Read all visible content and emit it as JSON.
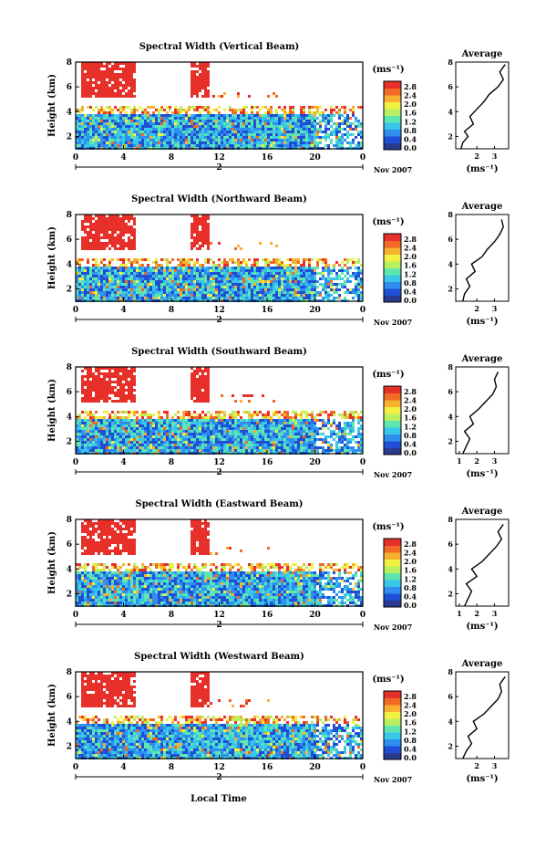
{
  "figure": {
    "xlabel": "Local Time",
    "date_label": "Nov 2007",
    "colorbar_unit": "(ms⁻¹)",
    "average_title": "Average",
    "average_unit": "(ms⁻¹)",
    "ylabel": "Height (km)",
    "colorbar_ticks": [
      "2.8",
      "2.4",
      "2.0",
      "1.6",
      "1.2",
      "0.8",
      "0.4",
      "0.0"
    ],
    "colormap": [
      "#2a3a8f",
      "#1f4fd4",
      "#2f8ff0",
      "#39c6e8",
      "#5fe6b0",
      "#b8f060",
      "#f2f040",
      "#f8b030",
      "#f06a26",
      "#e8302a"
    ]
  },
  "chart_data": [
    {
      "type": "heatmap",
      "title": "Spectral Width (Vertical Beam)",
      "ylabel": "Height (km)",
      "x_ticks": [
        "0",
        "4",
        "8",
        "12",
        "16",
        "20",
        "0"
      ],
      "day_marker": "2",
      "y_ticks": [
        "8",
        "6",
        "4",
        "2"
      ],
      "xlim": [
        0,
        24
      ],
      "ylim": [
        1,
        8
      ],
      "colorbar": {
        "ticks": [
          "2.8",
          "2.4",
          "2.0",
          "1.6",
          "1.2",
          "0.8",
          "0.4",
          "0.0"
        ],
        "range": [
          0,
          2.8
        ]
      },
      "average": {
        "title": "Average",
        "xlabel": "(ms⁻¹)",
        "x_ticks": [
          "2",
          "3"
        ],
        "y_ticks": [
          "8",
          "6",
          "4",
          "2"
        ],
        "profile": [
          [
            1.1,
            1.0
          ],
          [
            1.2,
            1.5
          ],
          [
            1.5,
            2.0
          ],
          [
            1.3,
            2.4
          ],
          [
            1.8,
            3.0
          ],
          [
            1.6,
            3.6
          ],
          [
            2.0,
            4.2
          ],
          [
            2.4,
            4.8
          ],
          [
            2.7,
            5.4
          ],
          [
            3.2,
            6.0
          ],
          [
            3.5,
            6.6
          ],
          [
            3.3,
            7.2
          ],
          [
            3.6,
            7.8
          ]
        ]
      }
    },
    {
      "type": "heatmap",
      "title": "Spectral Width (Northward Beam)",
      "ylabel": "Height (km)",
      "x_ticks": [
        "0",
        "4",
        "8",
        "12",
        "16",
        "20",
        "0"
      ],
      "day_marker": "2",
      "y_ticks": [
        "8",
        "6",
        "4",
        "2"
      ],
      "xlim": [
        0,
        24
      ],
      "ylim": [
        1,
        8
      ],
      "colorbar": {
        "ticks": [
          "2.8",
          "2.4",
          "2.0",
          "1.6",
          "1.2",
          "0.8",
          "0.4",
          "0.0"
        ],
        "range": [
          0,
          2.8
        ]
      },
      "average": {
        "title": "Average",
        "xlabel": "(ms⁻¹)",
        "x_ticks": [
          "2",
          "3"
        ],
        "y_ticks": [
          "8",
          "6",
          "4",
          "2"
        ],
        "profile": [
          [
            1.2,
            1.0
          ],
          [
            1.3,
            1.6
          ],
          [
            1.6,
            2.2
          ],
          [
            1.4,
            2.8
          ],
          [
            1.9,
            3.4
          ],
          [
            1.7,
            4.0
          ],
          [
            2.3,
            4.6
          ],
          [
            2.6,
            5.2
          ],
          [
            3.0,
            5.8
          ],
          [
            3.3,
            6.4
          ],
          [
            3.5,
            7.0
          ],
          [
            3.4,
            7.6
          ]
        ]
      }
    },
    {
      "type": "heatmap",
      "title": "Spectral Width (Southward Beam)",
      "ylabel": "Height (km)",
      "x_ticks": [
        "0",
        "4",
        "8",
        "12",
        "16",
        "20",
        "0"
      ],
      "day_marker": "2",
      "y_ticks": [
        "8",
        "6",
        "4",
        "2"
      ],
      "xlim": [
        0,
        24
      ],
      "ylim": [
        1,
        8
      ],
      "colorbar": {
        "ticks": [
          "2.8",
          "2.4",
          "2.0",
          "1.6",
          "1.2",
          "0.8",
          "0.4",
          "0.0"
        ],
        "range": [
          0,
          2.8
        ]
      },
      "average": {
        "title": "Average",
        "xlabel": "(ms⁻¹)",
        "x_ticks": [
          "1",
          "2",
          "3"
        ],
        "y_ticks": [
          "8",
          "6",
          "4",
          "2"
        ],
        "profile": [
          [
            1.2,
            1.0
          ],
          [
            1.4,
            1.6
          ],
          [
            1.6,
            2.2
          ],
          [
            1.3,
            2.8
          ],
          [
            1.8,
            3.4
          ],
          [
            1.6,
            4.0
          ],
          [
            2.1,
            4.6
          ],
          [
            2.5,
            5.2
          ],
          [
            2.9,
            5.8
          ],
          [
            3.1,
            6.4
          ],
          [
            3.0,
            7.0
          ],
          [
            3.2,
            7.6
          ]
        ]
      }
    },
    {
      "type": "heatmap",
      "title": "Spectral Width (Eastward Beam)",
      "ylabel": "Height (km)",
      "x_ticks": [
        "0",
        "4",
        "8",
        "12",
        "16",
        "20",
        "0"
      ],
      "day_marker": "2",
      "y_ticks": [
        "8",
        "6",
        "4",
        "2"
      ],
      "xlim": [
        0,
        24
      ],
      "ylim": [
        1,
        8
      ],
      "colorbar": {
        "ticks": [
          "2.8",
          "2.4",
          "2.0",
          "1.6",
          "1.2",
          "0.8",
          "0.4",
          "0.0"
        ],
        "range": [
          0,
          2.8
        ]
      },
      "average": {
        "title": "Average",
        "xlabel": "(ms⁻¹)",
        "x_ticks": [
          "1",
          "2",
          "3"
        ],
        "y_ticks": [
          "8",
          "6",
          "4",
          "2"
        ],
        "profile": [
          [
            1.3,
            1.0
          ],
          [
            1.5,
            1.6
          ],
          [
            1.7,
            2.2
          ],
          [
            1.4,
            2.8
          ],
          [
            2.0,
            3.4
          ],
          [
            1.7,
            4.0
          ],
          [
            2.3,
            4.6
          ],
          [
            2.7,
            5.2
          ],
          [
            3.1,
            5.8
          ],
          [
            3.4,
            6.4
          ],
          [
            3.2,
            7.0
          ],
          [
            3.5,
            7.6
          ]
        ]
      }
    },
    {
      "type": "heatmap",
      "title": "Spectral Width (Westward Beam)",
      "ylabel": "Height (km)",
      "x_ticks": [
        "0",
        "4",
        "8",
        "12",
        "16",
        "20",
        "0"
      ],
      "day_marker": "2",
      "y_ticks": [
        "8",
        "6",
        "4",
        "2"
      ],
      "xlim": [
        0,
        24
      ],
      "ylim": [
        1,
        8
      ],
      "colorbar": {
        "ticks": [
          "2.8",
          "2.4",
          "2.0",
          "1.6",
          "1.2",
          "0.8",
          "0.4",
          "0.0"
        ],
        "range": [
          0,
          2.8
        ]
      },
      "average": {
        "title": "Average",
        "xlabel": "(ms⁻¹)",
        "x_ticks": [
          "2",
          "3"
        ],
        "y_ticks": [
          "8",
          "6",
          "4",
          "2"
        ],
        "profile": [
          [
            1.2,
            1.0
          ],
          [
            1.4,
            1.6
          ],
          [
            1.7,
            2.2
          ],
          [
            1.5,
            2.8
          ],
          [
            2.0,
            3.4
          ],
          [
            1.8,
            4.0
          ],
          [
            2.4,
            4.6
          ],
          [
            2.8,
            5.2
          ],
          [
            3.2,
            5.8
          ],
          [
            3.4,
            6.4
          ],
          [
            3.3,
            7.0
          ],
          [
            3.6,
            7.6
          ]
        ]
      }
    }
  ]
}
